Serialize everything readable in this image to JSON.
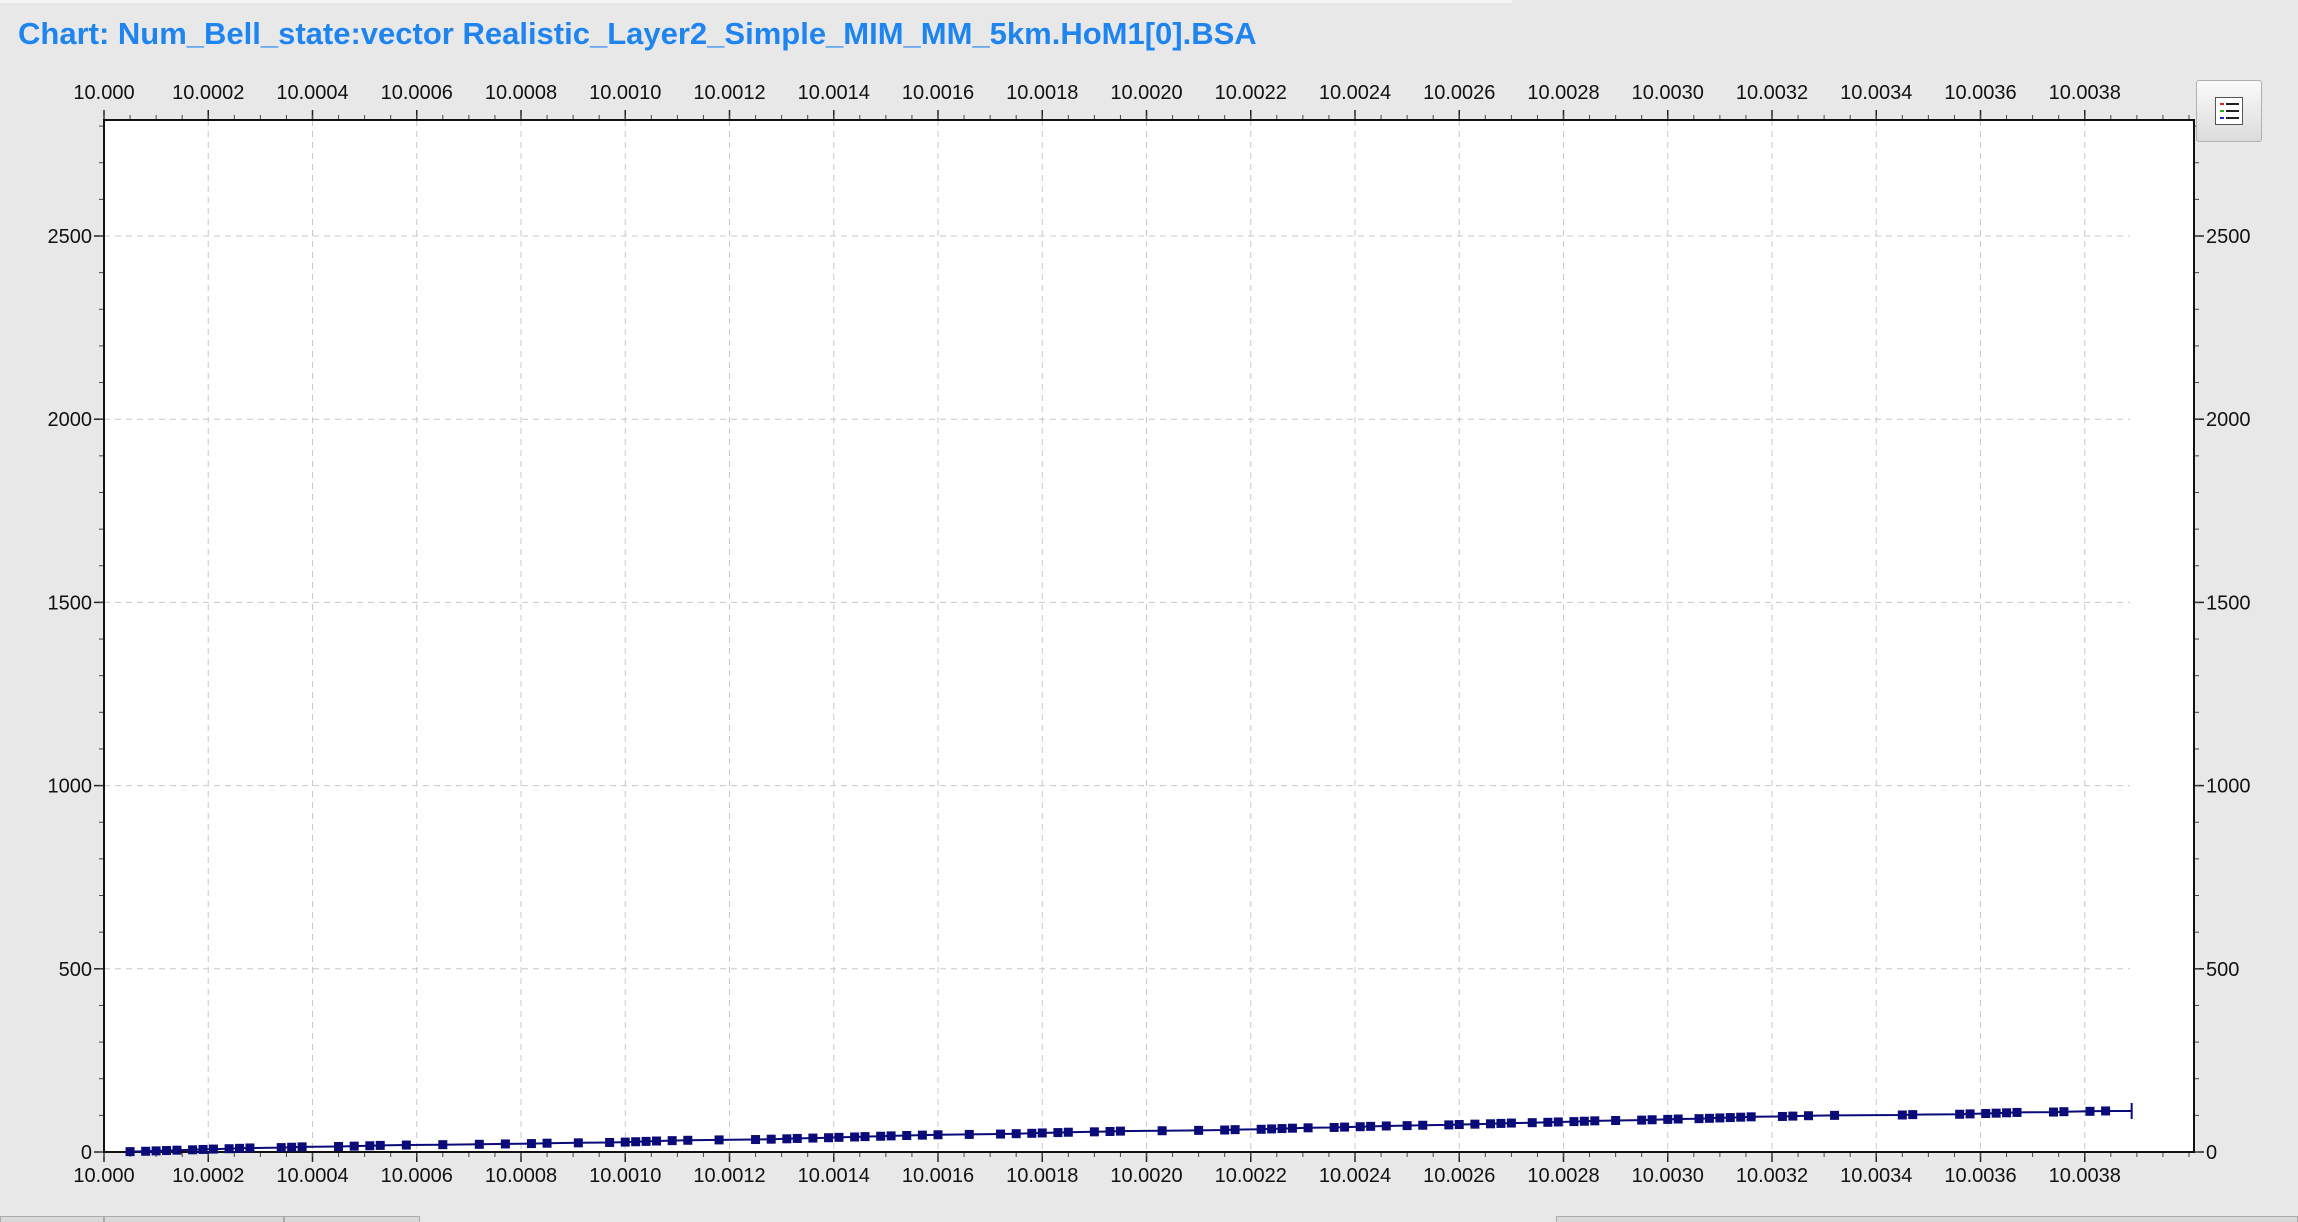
{
  "window": {
    "title": "Chart: Num_Bell_state:vector Realistic_Layer2_Simple_MIM_MM_5km.HoM1[0].BSA"
  },
  "toolbar": {
    "legend_button_icon": "legend-list-icon"
  },
  "colors": {
    "title": "#1e84f0",
    "series": "#0a0a78",
    "grid": "#c8c8c8",
    "background": "#e8e8e8",
    "plot": "#ffffff"
  },
  "chart_data": {
    "type": "line",
    "title": "Chart: Num_Bell_state:vector Realistic_Layer2_Simple_MIM_MM_5km.HoM1[0].BSA",
    "xlabel": "",
    "ylabel": "",
    "xlim": [
      10.0,
      10.00402
    ],
    "ylim": [
      0,
      2800
    ],
    "grid": true,
    "legend": "none",
    "x_ticks": [
      "10.000",
      "10.0002",
      "10.0004",
      "10.0006",
      "10.0008",
      "10.0010",
      "10.0012",
      "10.0014",
      "10.0016",
      "10.0018",
      "10.0020",
      "10.0022",
      "10.0024",
      "10.0026",
      "10.0028",
      "10.0030",
      "10.0032",
      "10.0034",
      "10.0036",
      "10.0038"
    ],
    "y_ticks": [
      "0",
      "500",
      "1000",
      "1500",
      "2000",
      "2500"
    ],
    "series": [
      {
        "name": "",
        "x": [
          10.00005,
          10.00008,
          10.0001,
          10.00012,
          10.00014,
          10.00017,
          10.00019,
          10.00021,
          10.00024,
          10.00026,
          10.00028,
          10.00034,
          10.00036,
          10.00038,
          10.00045,
          10.00048,
          10.00051,
          10.00053,
          10.00058,
          10.00065,
          10.00072,
          10.00077,
          10.00082,
          10.00085,
          10.00091,
          10.00097,
          10.001,
          10.00102,
          10.00104,
          10.00106,
          10.00109,
          10.00112,
          10.00118,
          10.00125,
          10.00128,
          10.00131,
          10.00133,
          10.00136,
          10.00139,
          10.00141,
          10.00144,
          10.00146,
          10.00149,
          10.00151,
          10.00154,
          10.00157,
          10.0016,
          10.00166,
          10.00172,
          10.00175,
          10.00178,
          10.0018,
          10.00183,
          10.00185,
          10.0019,
          10.00193,
          10.00195,
          10.00203,
          10.0021,
          10.00215,
          10.00217,
          10.00222,
          10.00224,
          10.00226,
          10.00228,
          10.00231,
          10.00236,
          10.00238,
          10.00241,
          10.00243,
          10.00246,
          10.0025,
          10.00253,
          10.00258,
          10.0026,
          10.00263,
          10.00266,
          10.00268,
          10.0027,
          10.00274,
          10.00277,
          10.00279,
          10.00282,
          10.00284,
          10.00286,
          10.0029,
          10.00295,
          10.00297,
          10.003,
          10.00302,
          10.00306,
          10.00308,
          10.0031,
          10.00312,
          10.00314,
          10.00316,
          10.00322,
          10.00324,
          10.00327,
          10.00332,
          10.00345,
          10.00347,
          10.00356,
          10.00358,
          10.00361,
          10.00363,
          10.00365,
          10.00367,
          10.00374,
          10.00376,
          10.00381,
          10.00384
        ]
      }
    ]
  }
}
